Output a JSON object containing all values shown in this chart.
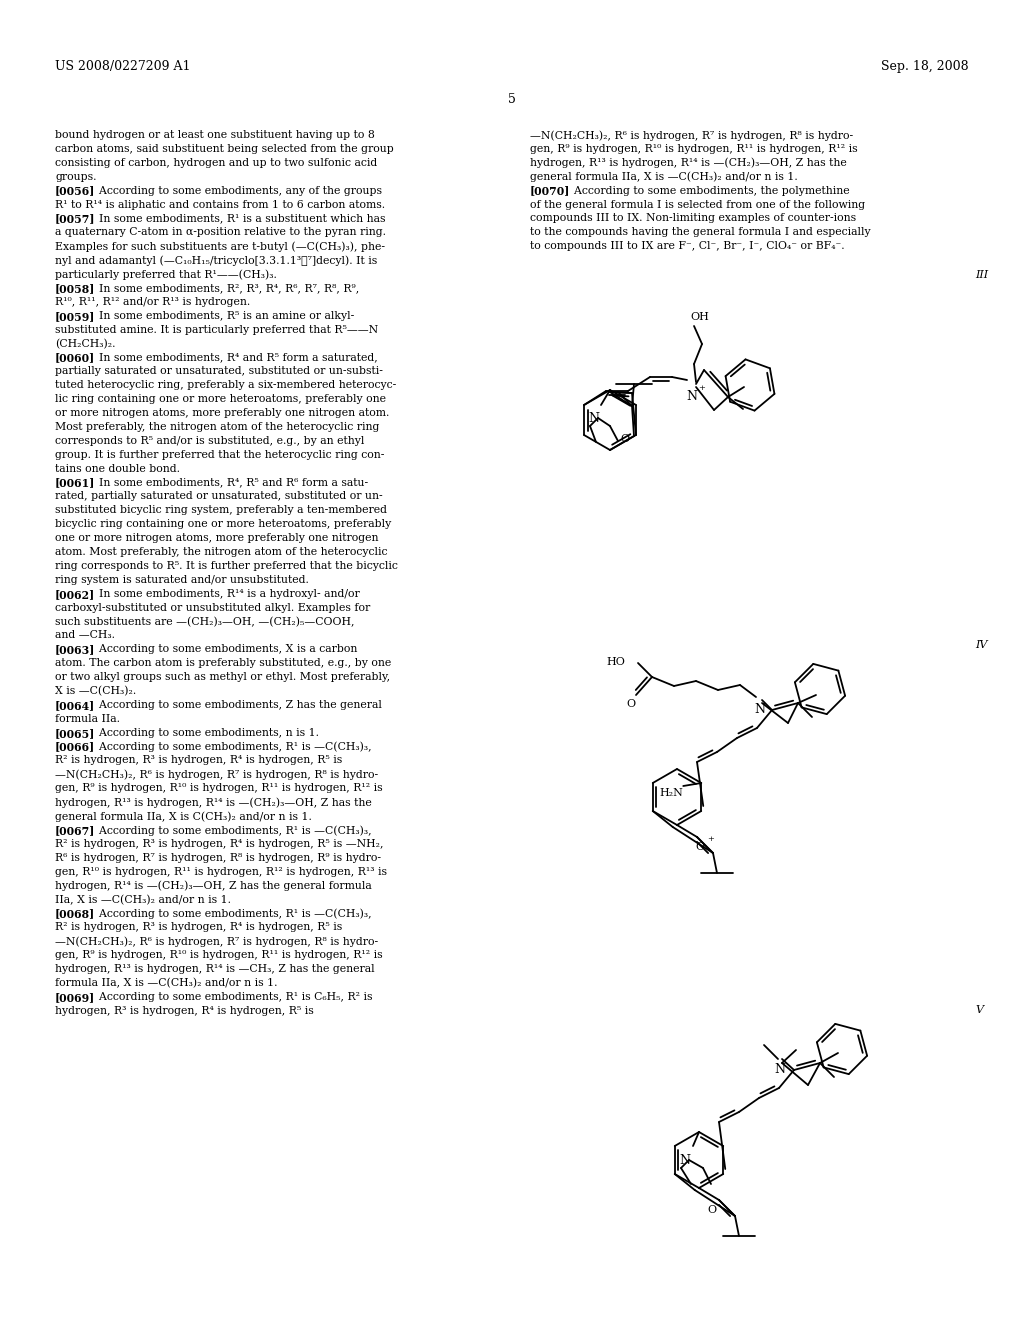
{
  "page_header_left": "US 2008/0227209 A1",
  "page_header_right": "Sep. 18, 2008",
  "page_number": "5",
  "background_color": "#ffffff",
  "text_color": "#000000",
  "left_column_text": [
    "bound hydrogen or at least one substituent having up to 8",
    "carbon atoms, said substituent being selected from the group",
    "consisting of carbon, hydrogen and up to two sulfonic acid",
    "groups.",
    "[0056]    According to some embodiments, any of the groups",
    "R¹ to R¹⁴ is aliphatic and contains from 1 to 6 carbon atoms.",
    "[0057]    In some embodiments, R¹ is a substituent which has",
    "a quaternary C-atom in α-position relative to the pyran ring.",
    "Examples for such substituents are t-butyl (—C(CH₃)₃), phe-",
    "nyl and adamantyl (—C₁₀H₁₅/tricyclo[3.3.1.1³‧⁷]decyl). It is",
    "particularly preferred that R¹——(CH₃)₃.",
    "[0058]    In some embodiments, R², R³, R⁴, R⁶, R⁷, R⁸, R⁹,",
    "R¹⁰, R¹¹, R¹² and/or R¹³ is hydrogen.",
    "[0059]    In some embodiments, R⁵ is an amine or alkyl-",
    "substituted amine. It is particularly preferred that R⁵——N",
    "(CH₂CH₃)₂.",
    "[0060]    In some embodiments, R⁴ and R⁵ form a saturated,",
    "partially saturated or unsaturated, substituted or un-substi-",
    "tuted heterocyclic ring, preferably a six-membered heterocyc-",
    "lic ring containing one or more heteroatoms, preferably one",
    "or more nitrogen atoms, more preferably one nitrogen atom.",
    "Most preferably, the nitrogen atom of the heterocyclic ring",
    "corresponds to R⁵ and/or is substituted, e.g., by an ethyl",
    "group. It is further preferred that the heterocyclic ring con-",
    "tains one double bond.",
    "[0061]    In some embodiments, R⁴, R⁵ and R⁶ form a satu-",
    "rated, partially saturated or unsaturated, substituted or un-",
    "substituted bicyclic ring system, preferably a ten-membered",
    "bicyclic ring containing one or more heteroatoms, preferably",
    "one or more nitrogen atoms, more preferably one nitrogen",
    "atom. Most preferably, the nitrogen atom of the heterocyclic",
    "ring corresponds to R⁵. It is further preferred that the bicyclic",
    "ring system is saturated and/or unsubstituted.",
    "[0062]    In some embodiments, R¹⁴ is a hydroxyl- and/or",
    "carboxyl-substituted or unsubstituted alkyl. Examples for",
    "such substituents are —(CH₂)₃—OH, —(CH₂)₅—COOH,",
    "and —CH₃.",
    "[0063]    According to some embodiments, X is a carbon",
    "atom. The carbon atom is preferably substituted, e.g., by one",
    "or two alkyl groups such as methyl or ethyl. Most preferably,",
    "X is —C(CH₃)₂.",
    "[0064]    According to some embodiments, Z has the general",
    "formula IIa.",
    "[0065]    According to some embodiments, n is 1.",
    "[0066]    According to some embodiments, R¹ is —C(CH₃)₃,",
    "R² is hydrogen, R³ is hydrogen, R⁴ is hydrogen, R⁵ is",
    "—N(CH₂CH₃)₂, R⁶ is hydrogen, R⁷ is hydrogen, R⁸ is hydro-",
    "gen, R⁹ is hydrogen, R¹⁰ is hydrogen, R¹¹ is hydrogen, R¹² is",
    "hydrogen, R¹³ is hydrogen, R¹⁴ is —(CH₂)₃—OH, Z has the",
    "general formula IIa, X is C(CH₃)₂ and/or n is 1.",
    "[0067]    According to some embodiments, R¹ is —C(CH₃)₃,",
    "R² is hydrogen, R³ is hydrogen, R⁴ is hydrogen, R⁵ is —NH₂,",
    "R⁶ is hydrogen, R⁷ is hydrogen, R⁸ is hydrogen, R⁹ is hydro-",
    "gen, R¹⁰ is hydrogen, R¹¹ is hydrogen, R¹² is hydrogen, R¹³ is",
    "hydrogen, R¹⁴ is —(CH₂)₃—OH, Z has the general formula",
    "IIa, X is —C(CH₃)₂ and/or n is 1.",
    "[0068]    According to some embodiments, R¹ is —C(CH₃)₃,",
    "R² is hydrogen, R³ is hydrogen, R⁴ is hydrogen, R⁵ is",
    "—N(CH₂CH₃)₂, R⁶ is hydrogen, R⁷ is hydrogen, R⁸ is hydro-",
    "gen, R⁹ is hydrogen, R¹⁰ is hydrogen, R¹¹ is hydrogen, R¹² is",
    "hydrogen, R¹³ is hydrogen, R¹⁴ is —CH₃, Z has the general",
    "formula IIa, X is —C(CH₃)₂ and/or n is 1.",
    "[0069]    According to some embodiments, R¹ is C₆H₅, R² is",
    "hydrogen, R³ is hydrogen, R⁴ is hydrogen, R⁵ is"
  ],
  "right_column_text_top": [
    "—N(CH₂CH₃)₂, R⁶ is hydrogen, R⁷ is hydrogen, R⁸ is hydro-",
    "gen, R⁹ is hydrogen, R¹⁰ is hydrogen, R¹¹ is hydrogen, R¹² is",
    "hydrogen, R¹³ is hydrogen, R¹⁴ is —(CH₂)₃—OH, Z has the",
    "general formula IIa, X is —C(CH₃)₂ and/or n is 1.",
    "[0070]    According to some embodiments, the polymethine",
    "of the general formula I is selected from one of the following",
    "compounds III to IX. Non-limiting examples of counter-ions",
    "to the compounds having the general formula I and especially",
    "to compounds III to IX are F⁻, Cl⁻, Br⁻, I⁻, ClO₄⁻ or BF₄⁻."
  ],
  "figsize": [
    10.24,
    13.2
  ],
  "dpi": 100
}
